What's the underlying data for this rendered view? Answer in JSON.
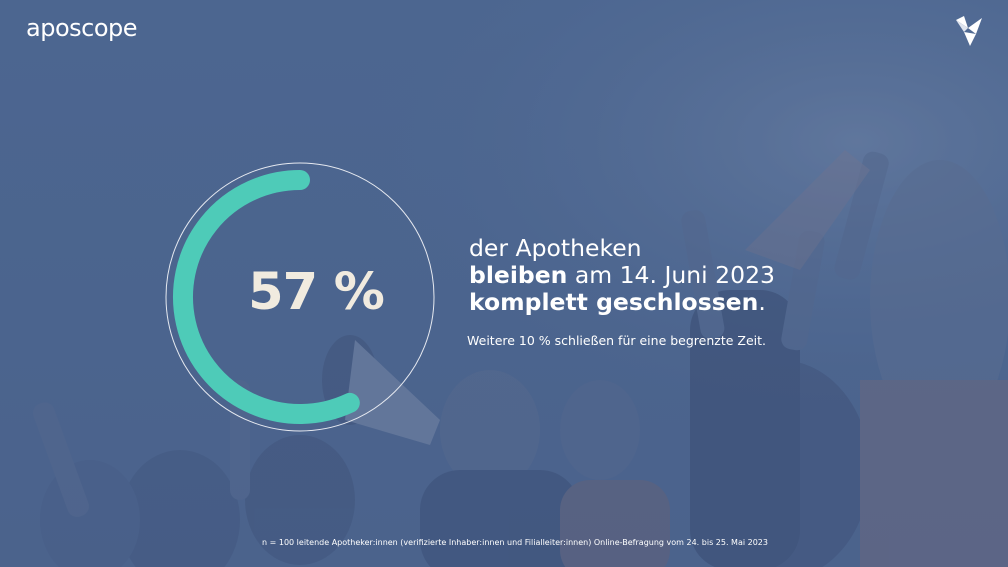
{
  "brand": {
    "logo_text": "aposcope",
    "logo_icon": "origami-bird-icon"
  },
  "stat": {
    "value_label": "57 %",
    "fraction": 0.57,
    "ring_color": "#4ecbb8",
    "outline_color": "#e6e9f0"
  },
  "headline": {
    "line1": "der Apotheken",
    "line2_bold": "bleiben",
    "line2_rest": " am 14. Juni 2023",
    "line3_bold": "komplett geschlossen",
    "line3_rest": "."
  },
  "subline": "Weitere 10 % schließen für eine begrenzte Zeit.",
  "footnote": "n = 100 leitende Apotheker:innen (verifizierte Inhaber:innen und Filialleiter:innen) Online-Befragung vom 24. bis 25. Mai 2023",
  "colors": {
    "overlay": "#4e6892",
    "accent": "#4ecbb8"
  }
}
